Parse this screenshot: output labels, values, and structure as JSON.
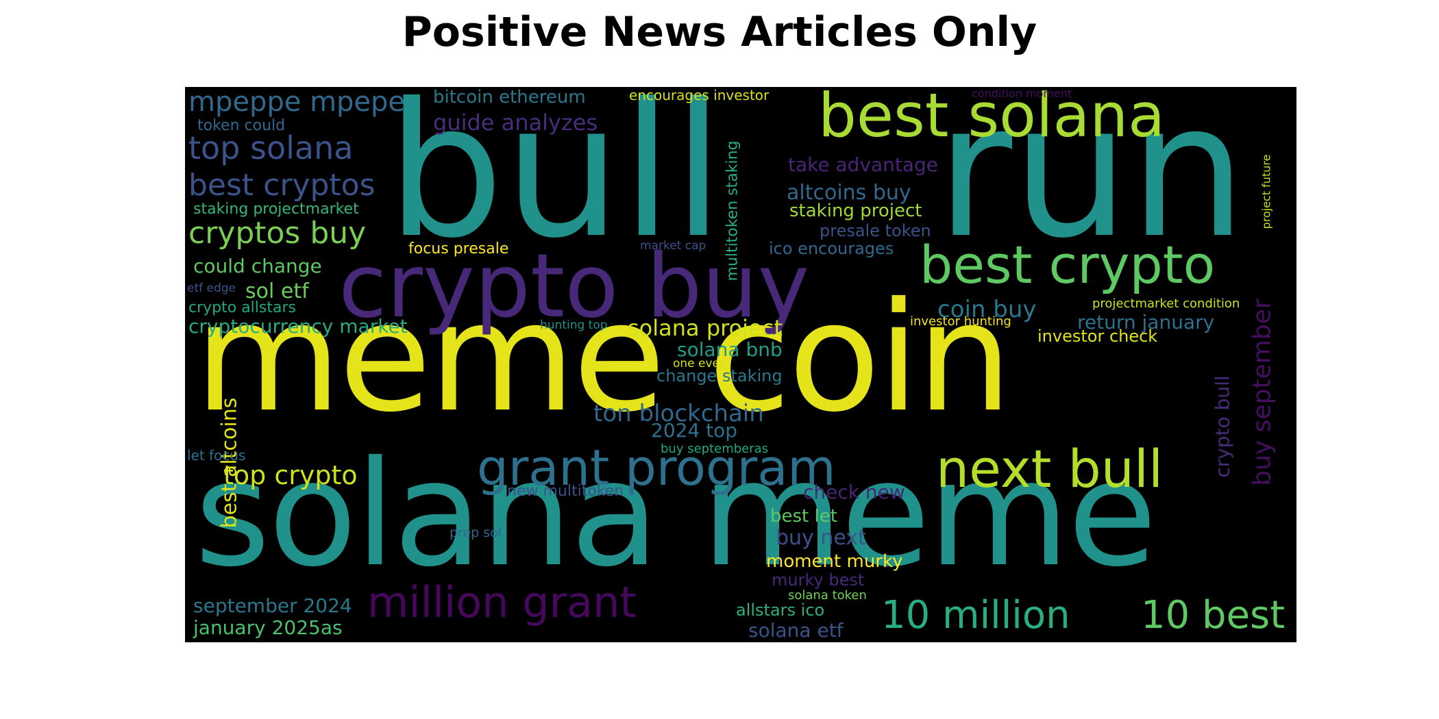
{
  "title": "Positive News Articles Only",
  "palette": {
    "background": "#000000",
    "yellow": "#e5e41a",
    "lime": "#a8db34",
    "green": "#5ec962",
    "teal": "#21918c",
    "blue": "#31688e",
    "indigo": "#3b528b",
    "purple": "#440f5e",
    "violet": "#482878"
  },
  "words": [
    {
      "text": "bull",
      "color": "#21918c"
    },
    {
      "text": "run",
      "color": "#21918c"
    },
    {
      "text": "meme coin",
      "color": "#e5e41a"
    },
    {
      "text": "solana meme",
      "color": "#21918c"
    },
    {
      "text": "crypto buy",
      "color": "#482878"
    },
    {
      "text": "best solana",
      "color": "#a8db34"
    },
    {
      "text": "best crypto",
      "color": "#5ec962"
    },
    {
      "text": "grant program",
      "color": "#2c728e"
    },
    {
      "text": "next bull",
      "color": "#b5de2b"
    },
    {
      "text": "million grant",
      "color": "#46085c"
    },
    {
      "text": "10 million",
      "color": "#29af7f"
    },
    {
      "text": "10 best",
      "color": "#5ec962"
    },
    {
      "text": "top solana",
      "color": "#3b528b"
    },
    {
      "text": "mpeppe mpepe",
      "color": "#31688e"
    },
    {
      "text": "best cryptos",
      "color": "#3b528b"
    },
    {
      "text": "cryptos buy",
      "color": "#7ad151"
    },
    {
      "text": "top crypto",
      "color": "#cde11d"
    },
    {
      "text": "guide analyzes",
      "color": "#472d7b"
    },
    {
      "text": "bitcoin ethereum",
      "color": "#2a788e"
    },
    {
      "text": "encourages investor",
      "color": "#d8e219"
    },
    {
      "text": "condition moment",
      "color": "#440f5e"
    },
    {
      "text": "token could",
      "color": "#31688e"
    },
    {
      "text": "staking projectmarket",
      "color": "#35b779"
    },
    {
      "text": "could change",
      "color": "#5ec962"
    },
    {
      "text": "sol etf",
      "color": "#6ccd5a"
    },
    {
      "text": "etf edge",
      "color": "#3b528b"
    },
    {
      "text": "crypto allstars",
      "color": "#22a884"
    },
    {
      "text": "cryptocurrency market",
      "color": "#25ac82"
    },
    {
      "text": "best altcoins",
      "color": "#dfe318"
    },
    {
      "text": "let focus",
      "color": "#2c728e"
    },
    {
      "text": "focus presale",
      "color": "#fde725"
    },
    {
      "text": "take advantage",
      "color": "#482576"
    },
    {
      "text": "altcoins buy",
      "color": "#31688e"
    },
    {
      "text": "staking project",
      "color": "#a0da39"
    },
    {
      "text": "presale token",
      "color": "#3b528b"
    },
    {
      "text": "ico encourages",
      "color": "#31688e"
    },
    {
      "text": "market cap",
      "color": "#3b528b"
    },
    {
      "text": "multitoken staking",
      "color": "#29af7f"
    },
    {
      "text": "coin buy",
      "color": "#2a788e"
    },
    {
      "text": "solana project",
      "color": "#d2e21b"
    },
    {
      "text": "hunting top",
      "color": "#21918c"
    },
    {
      "text": "solana bnb",
      "color": "#1f9e89"
    },
    {
      "text": "one ever",
      "color": "#d8e219"
    },
    {
      "text": "change staking",
      "color": "#2a788e"
    },
    {
      "text": "ton blockchain",
      "color": "#31688e"
    },
    {
      "text": "2024 top",
      "color": "#2c728e"
    },
    {
      "text": "buy septemberas",
      "color": "#22a884"
    },
    {
      "text": "new multitoken",
      "color": "#3b528b"
    },
    {
      "text": "check new",
      "color": "#482475"
    },
    {
      "text": "best let",
      "color": "#5ec962"
    },
    {
      "text": "buy next",
      "color": "#3b528b"
    },
    {
      "text": "moment murky",
      "color": "#fde725"
    },
    {
      "text": "murky best",
      "color": "#482878"
    },
    {
      "text": "solana token",
      "color": "#73d056"
    },
    {
      "text": "allstars ico",
      "color": "#2db27d"
    },
    {
      "text": "solana etf",
      "color": "#3b528b"
    },
    {
      "text": "prep sol",
      "color": "#31688e"
    },
    {
      "text": "september 2024",
      "color": "#2a788e"
    },
    {
      "text": "january 2025as",
      "color": "#4ac16d"
    },
    {
      "text": "projectmarket condition",
      "color": "#d0e11c"
    },
    {
      "text": "investor hunting",
      "color": "#f1e51d"
    },
    {
      "text": "investor check",
      "color": "#e2e418"
    },
    {
      "text": "return january",
      "color": "#2c728e"
    },
    {
      "text": "crypto bull",
      "color": "#472c7a"
    },
    {
      "text": "buy september",
      "color": "#440f5e"
    },
    {
      "text": "project future",
      "color": "#d0e11c"
    }
  ]
}
